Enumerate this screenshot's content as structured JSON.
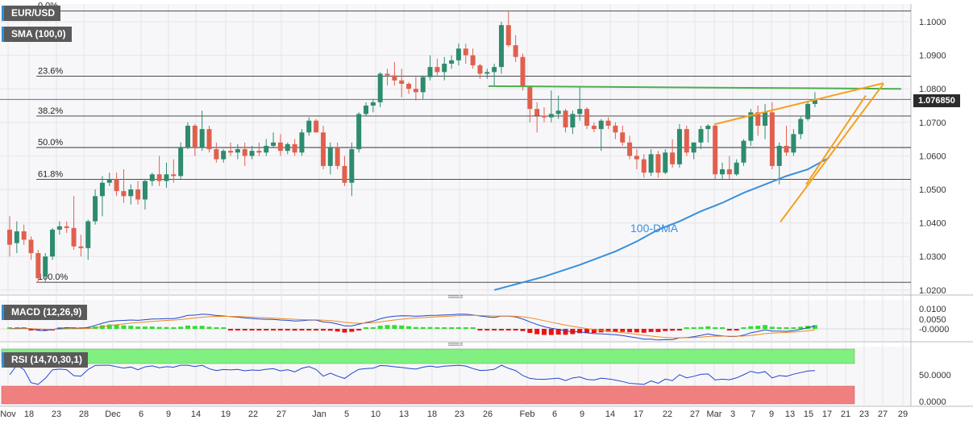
{
  "header": {
    "symbol_badge": "EUR/USD",
    "sma_badge": "SMA (100,0)",
    "macd_badge": "MACD (12,26,9)",
    "rsi_badge": "RSI (14,70,30,1)",
    "last_price": "1.076850"
  },
  "colors": {
    "up": "#2e8b6e",
    "down": "#e0604e",
    "sma": "#3a8fdc",
    "fib": "#333333",
    "resistance": "#4caf50",
    "wedge": "#f5a020",
    "macd_pos": "#33dd33",
    "macd_neg": "#ee1111",
    "rsi_ob": "#80f080",
    "rsi_os": "#f08080"
  },
  "chart_data": [
    {
      "type": "candlestick",
      "title": "EUR/USD",
      "y_ticks": [
        "1.1000",
        "1.0900",
        "1.0800",
        "1.0700",
        "1.0600",
        "1.0500",
        "1.0400",
        "1.0300",
        "1.0200"
      ],
      "x_ticks": [
        "Nov",
        "18",
        "23",
        "28",
        "Dec",
        "6",
        "9",
        "14",
        "19",
        "22",
        "27",
        "Jan",
        "5",
        "10",
        "13",
        "18",
        "23",
        "26",
        "Feb",
        "6",
        "9",
        "14",
        "17",
        "22",
        "27",
        "Mar",
        "3",
        "7",
        "9",
        "13",
        "15",
        "17",
        "21",
        "23",
        "27",
        "29"
      ],
      "fibonacci": [
        {
          "label": "0.0%",
          "price": 1.1032
        },
        {
          "label": "23.6%",
          "price": 1.0838
        },
        {
          "label": "38.2%",
          "price": 1.0719
        },
        {
          "label": "50.0%",
          "price": 1.0625
        },
        {
          "label": "61.8%",
          "price": 1.053
        },
        {
          "label": "100.0%",
          "price": 1.0223
        }
      ],
      "annotation": "100-DMA",
      "last_price": 1.07685,
      "candles": [
        {
          "o": 1.038,
          "h": 1.042,
          "l": 1.03,
          "c": 1.0335
        },
        {
          "o": 1.034,
          "h": 1.0405,
          "l": 1.031,
          "c": 1.0375
        },
        {
          "o": 1.0375,
          "h": 1.0395,
          "l": 1.0335,
          "c": 1.035
        },
        {
          "o": 1.035,
          "h": 1.036,
          "l": 1.029,
          "c": 1.031
        },
        {
          "o": 1.031,
          "h": 1.032,
          "l": 1.0222,
          "c": 1.0235
        },
        {
          "o": 1.024,
          "h": 1.031,
          "l": 1.0225,
          "c": 1.03
        },
        {
          "o": 1.03,
          "h": 1.0385,
          "l": 1.029,
          "c": 1.038
        },
        {
          "o": 1.038,
          "h": 1.0405,
          "l": 1.0365,
          "c": 1.039
        },
        {
          "o": 1.039,
          "h": 1.0405,
          "l": 1.037,
          "c": 1.0385
        },
        {
          "o": 1.0385,
          "h": 1.048,
          "l": 1.032,
          "c": 1.033
        },
        {
          "o": 1.033,
          "h": 1.0365,
          "l": 1.03,
          "c": 1.0325
        },
        {
          "o": 1.0325,
          "h": 1.041,
          "l": 1.029,
          "c": 1.0405
        },
        {
          "o": 1.0405,
          "h": 1.05,
          "l": 1.0395,
          "c": 1.048
        },
        {
          "o": 1.048,
          "h": 1.054,
          "l": 1.042,
          "c": 1.052
        },
        {
          "o": 1.052,
          "h": 1.055,
          "l": 1.051,
          "c": 1.053
        },
        {
          "o": 1.053,
          "h": 1.055,
          "l": 1.048,
          "c": 1.0495
        },
        {
          "o": 1.0495,
          "h": 1.056,
          "l": 1.046,
          "c": 1.048
        },
        {
          "o": 1.048,
          "h": 1.0515,
          "l": 1.0455,
          "c": 1.05
        },
        {
          "o": 1.05,
          "h": 1.0525,
          "l": 1.0455,
          "c": 1.047
        },
        {
          "o": 1.047,
          "h": 1.053,
          "l": 1.044,
          "c": 1.0525
        },
        {
          "o": 1.0525,
          "h": 1.055,
          "l": 1.051,
          "c": 1.0545
        },
        {
          "o": 1.0545,
          "h": 1.06,
          "l": 1.051,
          "c": 1.0525
        },
        {
          "o": 1.0525,
          "h": 1.058,
          "l": 1.0505,
          "c": 1.0545
        },
        {
          "o": 1.0545,
          "h": 1.059,
          "l": 1.052,
          "c": 1.054
        },
        {
          "o": 1.054,
          "h": 1.064,
          "l": 1.053,
          "c": 1.0625
        },
        {
          "o": 1.0625,
          "h": 1.07,
          "l": 1.062,
          "c": 1.069
        },
        {
          "o": 1.069,
          "h": 1.0695,
          "l": 1.06,
          "c": 1.0625
        },
        {
          "o": 1.0625,
          "h": 1.0735,
          "l": 1.0615,
          "c": 1.068
        },
        {
          "o": 1.068,
          "h": 1.069,
          "l": 1.061,
          "c": 1.062
        },
        {
          "o": 1.062,
          "h": 1.064,
          "l": 1.058,
          "c": 1.059
        },
        {
          "o": 1.059,
          "h": 1.062,
          "l": 1.058,
          "c": 1.0615
        },
        {
          "o": 1.0615,
          "h": 1.064,
          "l": 1.06,
          "c": 1.061
        },
        {
          "o": 1.061,
          "h": 1.0635,
          "l": 1.059,
          "c": 1.062
        },
        {
          "o": 1.062,
          "h": 1.064,
          "l": 1.057,
          "c": 1.06
        },
        {
          "o": 1.06,
          "h": 1.063,
          "l": 1.059,
          "c": 1.0615
        },
        {
          "o": 1.0615,
          "h": 1.064,
          "l": 1.06,
          "c": 1.061
        },
        {
          "o": 1.061,
          "h": 1.065,
          "l": 1.06,
          "c": 1.063
        },
        {
          "o": 1.063,
          "h": 1.067,
          "l": 1.0625,
          "c": 1.064
        },
        {
          "o": 1.064,
          "h": 1.0665,
          "l": 1.06,
          "c": 1.0615
        },
        {
          "o": 1.0615,
          "h": 1.064,
          "l": 1.0605,
          "c": 1.0635
        },
        {
          "o": 1.0635,
          "h": 1.065,
          "l": 1.06,
          "c": 1.061
        },
        {
          "o": 1.061,
          "h": 1.068,
          "l": 1.06,
          "c": 1.067
        },
        {
          "o": 1.067,
          "h": 1.0715,
          "l": 1.066,
          "c": 1.0705
        },
        {
          "o": 1.0705,
          "h": 1.071,
          "l": 1.067,
          "c": 1.067
        },
        {
          "o": 1.067,
          "h": 1.069,
          "l": 1.056,
          "c": 1.057
        },
        {
          "o": 1.057,
          "h": 1.064,
          "l": 1.0545,
          "c": 1.0625
        },
        {
          "o": 1.0625,
          "h": 1.064,
          "l": 1.056,
          "c": 1.057
        },
        {
          "o": 1.057,
          "h": 1.06,
          "l": 1.051,
          "c": 1.052
        },
        {
          "o": 1.052,
          "h": 1.064,
          "l": 1.048,
          "c": 1.062
        },
        {
          "o": 1.062,
          "h": 1.073,
          "l": 1.061,
          "c": 1.0725
        },
        {
          "o": 1.0725,
          "h": 1.076,
          "l": 1.072,
          "c": 1.075
        },
        {
          "o": 1.075,
          "h": 1.077,
          "l": 1.073,
          "c": 1.076
        },
        {
          "o": 1.076,
          "h": 1.085,
          "l": 1.0745,
          "c": 1.0845
        },
        {
          "o": 1.0845,
          "h": 1.086,
          "l": 1.081,
          "c": 1.084
        },
        {
          "o": 1.084,
          "h": 1.088,
          "l": 1.081,
          "c": 1.0825
        },
        {
          "o": 1.0825,
          "h": 1.086,
          "l": 1.0775,
          "c": 1.0815
        },
        {
          "o": 1.0815,
          "h": 1.082,
          "l": 1.0785,
          "c": 1.08
        },
        {
          "o": 1.08,
          "h": 1.0835,
          "l": 1.0765,
          "c": 1.079
        },
        {
          "o": 1.079,
          "h": 1.084,
          "l": 1.077,
          "c": 1.0835
        },
        {
          "o": 1.0835,
          "h": 1.09,
          "l": 1.0825,
          "c": 1.0865
        },
        {
          "o": 1.0865,
          "h": 1.089,
          "l": 1.084,
          "c": 1.085
        },
        {
          "o": 1.085,
          "h": 1.0895,
          "l": 1.0825,
          "c": 1.0875
        },
        {
          "o": 1.0875,
          "h": 1.09,
          "l": 1.086,
          "c": 1.0885
        },
        {
          "o": 1.0885,
          "h": 1.0935,
          "l": 1.087,
          "c": 1.092
        },
        {
          "o": 1.092,
          "h": 1.0935,
          "l": 1.0875,
          "c": 1.09
        },
        {
          "o": 1.09,
          "h": 1.092,
          "l": 1.086,
          "c": 1.087
        },
        {
          "o": 1.087,
          "h": 1.0875,
          "l": 1.083,
          "c": 1.0845
        },
        {
          "o": 1.0845,
          "h": 1.086,
          "l": 1.083,
          "c": 1.085
        },
        {
          "o": 1.085,
          "h": 1.0875,
          "l": 1.081,
          "c": 1.0865
        },
        {
          "o": 1.0865,
          "h": 1.1,
          "l": 1.0845,
          "c": 1.099
        },
        {
          "o": 1.099,
          "h": 1.1032,
          "l": 1.0925,
          "c": 1.093
        },
        {
          "o": 1.093,
          "h": 1.096,
          "l": 1.088,
          "c": 1.0895
        },
        {
          "o": 1.0895,
          "h": 1.0905,
          "l": 1.0795,
          "c": 1.0805
        },
        {
          "o": 1.0805,
          "h": 1.081,
          "l": 1.07,
          "c": 1.074
        },
        {
          "o": 1.074,
          "h": 1.076,
          "l": 1.067,
          "c": 1.072
        },
        {
          "o": 1.072,
          "h": 1.0745,
          "l": 1.07,
          "c": 1.0715
        },
        {
          "o": 1.0715,
          "h": 1.0795,
          "l": 1.07,
          "c": 1.0725
        },
        {
          "o": 1.0725,
          "h": 1.078,
          "l": 1.071,
          "c": 1.0735
        },
        {
          "o": 1.0735,
          "h": 1.074,
          "l": 1.067,
          "c": 1.0685
        },
        {
          "o": 1.0685,
          "h": 1.0735,
          "l": 1.0665,
          "c": 1.0725
        },
        {
          "o": 1.0725,
          "h": 1.0805,
          "l": 1.0705,
          "c": 1.074
        },
        {
          "o": 1.074,
          "h": 1.0745,
          "l": 1.068,
          "c": 1.069
        },
        {
          "o": 1.069,
          "h": 1.07,
          "l": 1.067,
          "c": 1.068
        },
        {
          "o": 1.068,
          "h": 1.071,
          "l": 1.0615,
          "c": 1.0705
        },
        {
          "o": 1.0705,
          "h": 1.0715,
          "l": 1.068,
          "c": 1.069
        },
        {
          "o": 1.069,
          "h": 1.07,
          "l": 1.065,
          "c": 1.067
        },
        {
          "o": 1.067,
          "h": 1.069,
          "l": 1.063,
          "c": 1.064
        },
        {
          "o": 1.064,
          "h": 1.066,
          "l": 1.059,
          "c": 1.06
        },
        {
          "o": 1.06,
          "h": 1.062,
          "l": 1.056,
          "c": 1.059
        },
        {
          "o": 1.059,
          "h": 1.0605,
          "l": 1.0535,
          "c": 1.055
        },
        {
          "o": 1.055,
          "h": 1.062,
          "l": 1.054,
          "c": 1.0605
        },
        {
          "o": 1.0605,
          "h": 1.0615,
          "l": 1.0535,
          "c": 1.055
        },
        {
          "o": 1.055,
          "h": 1.062,
          "l": 1.0545,
          "c": 1.061
        },
        {
          "o": 1.061,
          "h": 1.065,
          "l": 1.0565,
          "c": 1.0575
        },
        {
          "o": 1.0575,
          "h": 1.0695,
          "l": 1.0565,
          "c": 1.068
        },
        {
          "o": 1.068,
          "h": 1.069,
          "l": 1.06,
          "c": 1.061
        },
        {
          "o": 1.061,
          "h": 1.064,
          "l": 1.059,
          "c": 1.064
        },
        {
          "o": 1.064,
          "h": 1.069,
          "l": 1.062,
          "c": 1.068
        },
        {
          "o": 1.068,
          "h": 1.0695,
          "l": 1.064,
          "c": 1.069
        },
        {
          "o": 1.069,
          "h": 1.0695,
          "l": 1.053,
          "c": 1.0545
        },
        {
          "o": 1.0545,
          "h": 1.058,
          "l": 1.053,
          "c": 1.056
        },
        {
          "o": 1.056,
          "h": 1.06,
          "l": 1.053,
          "c": 1.0545
        },
        {
          "o": 1.0545,
          "h": 1.059,
          "l": 1.054,
          "c": 1.058
        },
        {
          "o": 1.058,
          "h": 1.065,
          "l": 1.057,
          "c": 1.0645
        },
        {
          "o": 1.0645,
          "h": 1.074,
          "l": 1.063,
          "c": 1.073
        },
        {
          "o": 1.073,
          "h": 1.075,
          "l": 1.066,
          "c": 1.069
        },
        {
          "o": 1.069,
          "h": 1.0755,
          "l": 1.065,
          "c": 1.073
        },
        {
          "o": 1.073,
          "h": 1.076,
          "l": 1.056,
          "c": 1.057
        },
        {
          "o": 1.057,
          "h": 1.064,
          "l": 1.0515,
          "c": 1.063
        },
        {
          "o": 1.063,
          "h": 1.069,
          "l": 1.06,
          "c": 1.061
        },
        {
          "o": 1.061,
          "h": 1.068,
          "l": 1.06,
          "c": 1.0665
        },
        {
          "o": 1.0665,
          "h": 1.072,
          "l": 1.065,
          "c": 1.071
        },
        {
          "o": 1.071,
          "h": 1.076,
          "l": 1.0705,
          "c": 1.0755
        },
        {
          "o": 1.0755,
          "h": 1.079,
          "l": 1.0745,
          "c": 1.0769
        }
      ],
      "sma_100": [
        {
          "i": 68,
          "v": 1.02
        },
        {
          "i": 75,
          "v": 1.024
        },
        {
          "i": 80,
          "v": 1.0275
        },
        {
          "i": 85,
          "v": 1.0315
        },
        {
          "i": 88,
          "v": 1.0345
        },
        {
          "i": 91,
          "v": 1.038
        },
        {
          "i": 94,
          "v": 1.0405
        },
        {
          "i": 97,
          "v": 1.0435
        },
        {
          "i": 100,
          "v": 1.046
        },
        {
          "i": 103,
          "v": 1.049
        },
        {
          "i": 106,
          "v": 1.0515
        },
        {
          "i": 109,
          "v": 1.054
        },
        {
          "i": 112,
          "v": 1.056
        },
        {
          "i": 115,
          "v": 1.0595
        }
      ]
    },
    {
      "type": "bar",
      "title": "MACD (12,26,9)",
      "y_ticks": [
        "0.0100",
        "0.0050",
        "-0.0000"
      ]
    },
    {
      "type": "line",
      "title": "RSI (14,70,30,1)",
      "y_ticks": [
        "50.0000",
        "0.0000"
      ]
    }
  ]
}
